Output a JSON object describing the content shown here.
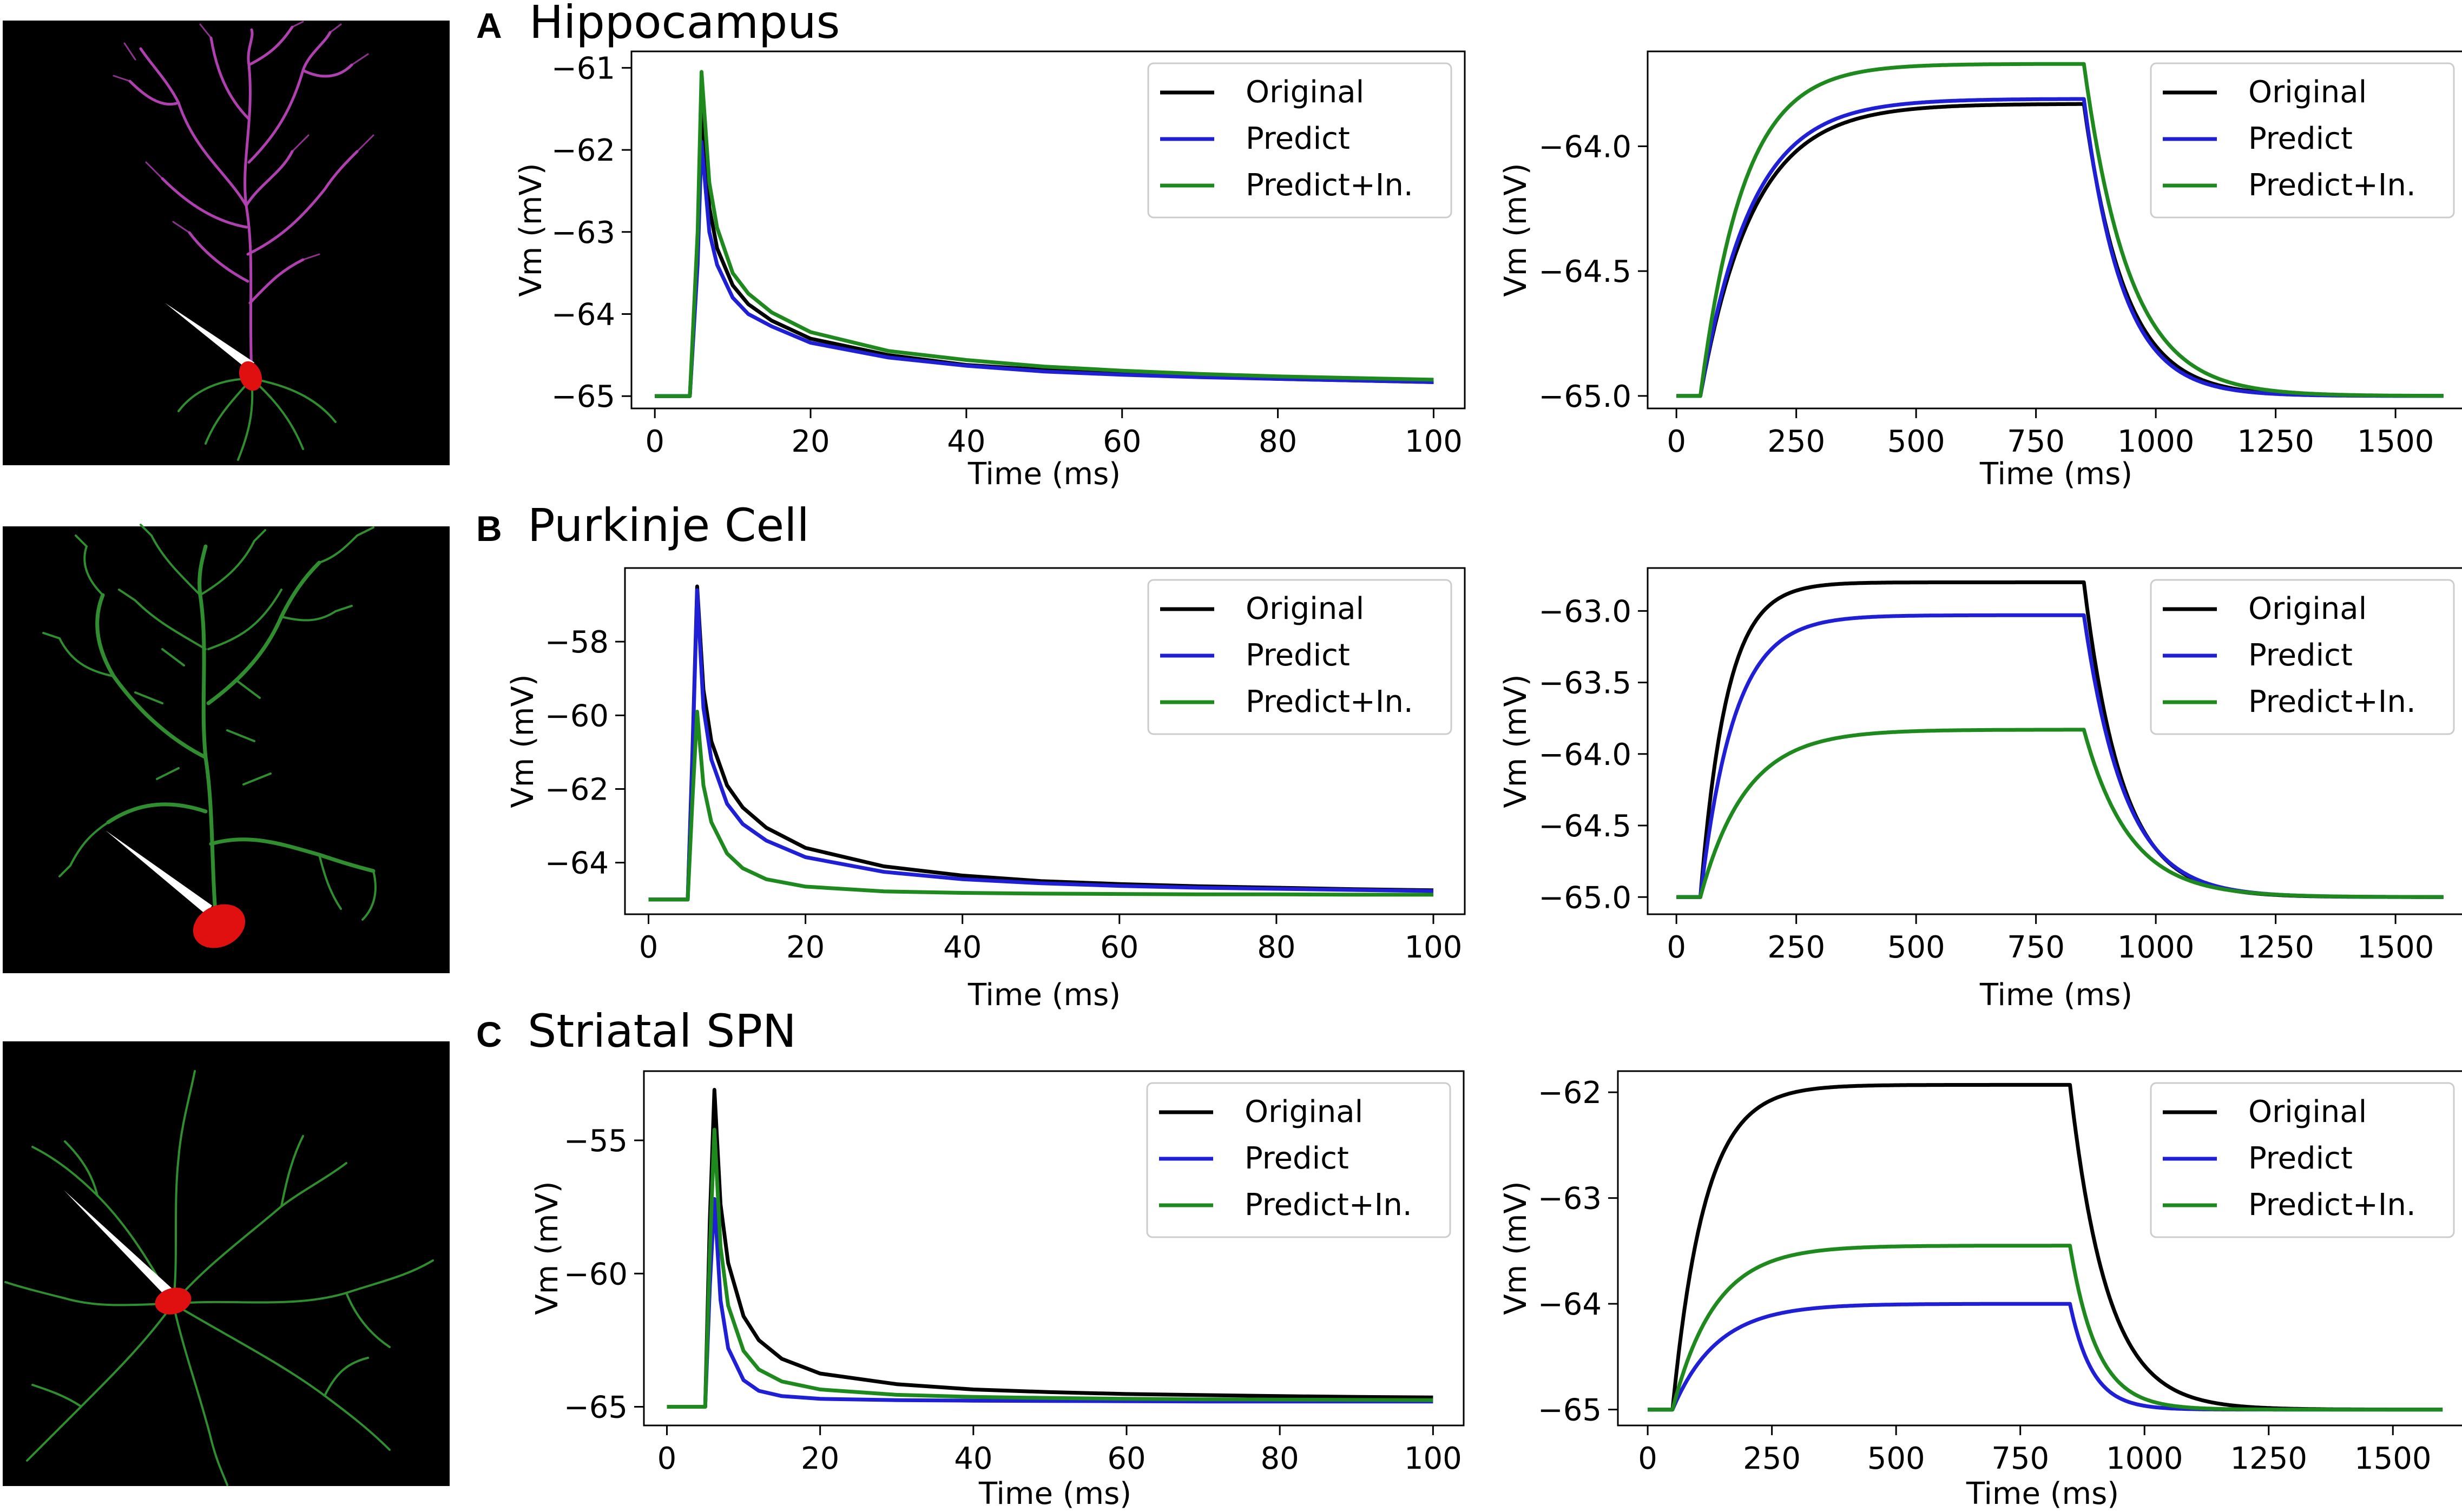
{
  "colors": {
    "original": "#000000",
    "predict": "#1f1fd6",
    "predict_in": "#1e8a1e",
    "neuron_hippo": "#b040b0",
    "neuron_green": "#2f8f2f",
    "soma": "#e01010"
  },
  "panels": [
    {
      "letter": "A",
      "title": "Hippocampus",
      "neuron_icon": "pyramidal-neuron-morphology"
    },
    {
      "letter": "B",
      "title": "Purkinje Cell",
      "neuron_icon": "purkinje-neuron-morphology"
    },
    {
      "letter": "C",
      "title": "Striatal SPN",
      "neuron_icon": "spn-neuron-morphology"
    }
  ],
  "legend_labels": [
    "Original",
    "Predict",
    "Predict+In."
  ],
  "chart_data": [
    {
      "id": "A-short",
      "type": "line",
      "xlabel": "Time (ms)",
      "ylabel": "Vm (mV)",
      "xlim": [
        -3,
        104
      ],
      "ylim": [
        -65.15,
        -60.8
      ],
      "xticks": [
        0,
        20,
        40,
        60,
        80,
        100
      ],
      "yticks": [
        -61,
        -62,
        -63,
        -64,
        -65
      ],
      "ytick_labels": [
        "−61",
        "−62",
        "−63",
        "−64",
        "−65"
      ],
      "legend": "top-right",
      "series": [
        {
          "name": "Original",
          "x": [
            0,
            4.5,
            5.5,
            6,
            7,
            8,
            10,
            12,
            15,
            20,
            30,
            40,
            50,
            60,
            70,
            80,
            90,
            100
          ],
          "values": [
            -65,
            -65,
            -63.3,
            -61.5,
            -62.7,
            -63.2,
            -63.65,
            -63.88,
            -64.08,
            -64.3,
            -64.5,
            -64.62,
            -64.68,
            -64.73,
            -64.76,
            -64.79,
            -64.81,
            -64.83
          ]
        },
        {
          "name": "Predict",
          "x": [
            0,
            4.5,
            5.5,
            6,
            7,
            8,
            10,
            12,
            15,
            20,
            30,
            40,
            50,
            60,
            70,
            80,
            90,
            100
          ],
          "values": [
            -65,
            -65,
            -63.4,
            -61.9,
            -63.0,
            -63.4,
            -63.8,
            -64.0,
            -64.15,
            -64.35,
            -64.53,
            -64.63,
            -64.7,
            -64.74,
            -64.77,
            -64.79,
            -64.81,
            -64.83
          ]
        },
        {
          "name": "Predict+In.",
          "x": [
            0,
            4.5,
            5.5,
            6,
            7,
            8,
            10,
            12,
            15,
            20,
            30,
            40,
            50,
            60,
            70,
            80,
            90,
            100
          ],
          "values": [
            -65,
            -65,
            -63.0,
            -61.05,
            -62.4,
            -62.95,
            -63.5,
            -63.75,
            -63.98,
            -64.22,
            -64.45,
            -64.56,
            -64.64,
            -64.69,
            -64.73,
            -64.76,
            -64.78,
            -64.8
          ]
        }
      ]
    },
    {
      "id": "A-long",
      "type": "line",
      "xlabel": "Time (ms)",
      "ylabel": "Vm (mV)",
      "xlim": [
        -60,
        1650
      ],
      "ylim": [
        -65.05,
        -63.62
      ],
      "xticks": [
        0,
        250,
        500,
        750,
        1000,
        1250,
        1500
      ],
      "yticks": [
        -64.0,
        -64.5,
        -65.0
      ],
      "ytick_labels": [
        "−64.0",
        "−64.5",
        "−65.0"
      ],
      "legend": "top-right",
      "series": [
        {
          "name": "Original",
          "step_on": 50,
          "step_off": 850,
          "end": 1600,
          "rest": -65.0,
          "plateau": -63.83,
          "tau_rise": 110,
          "tau_fall": 85
        },
        {
          "name": "Predict",
          "step_on": 50,
          "step_off": 850,
          "end": 1600,
          "rest": -65.0,
          "plateau": -63.81,
          "tau_rise": 105,
          "tau_fall": 80
        },
        {
          "name": "Predict+In.",
          "step_on": 50,
          "step_off": 850,
          "end": 1600,
          "rest": -65.0,
          "plateau": -63.67,
          "tau_rise": 90,
          "tau_fall": 95
        }
      ]
    },
    {
      "id": "B-short",
      "type": "line",
      "xlabel": "Time (ms)",
      "ylabel": "Vm (mV)",
      "xlim": [
        -3,
        104
      ],
      "ylim": [
        -65.4,
        -56.0
      ],
      "xticks": [
        0,
        20,
        40,
        60,
        80,
        100
      ],
      "yticks": [
        -58,
        -60,
        -62,
        -64
      ],
      "ytick_labels": [
        "−58",
        "−60",
        "−62",
        "−64"
      ],
      "legend": "top-right",
      "series": [
        {
          "name": "Original",
          "x": [
            0,
            5,
            5.6,
            6.2,
            7,
            8,
            10,
            12,
            15,
            20,
            30,
            40,
            50,
            60,
            70,
            80,
            90,
            100
          ],
          "values": [
            -65,
            -65,
            -61,
            -56.5,
            -59.3,
            -60.7,
            -61.9,
            -62.5,
            -63.05,
            -63.6,
            -64.1,
            -64.35,
            -64.5,
            -64.58,
            -64.64,
            -64.68,
            -64.72,
            -64.75
          ]
        },
        {
          "name": "Predict",
          "x": [
            0,
            5,
            5.6,
            6.2,
            7,
            8,
            10,
            12,
            15,
            20,
            30,
            40,
            50,
            60,
            70,
            80,
            90,
            100
          ],
          "values": [
            -65,
            -65,
            -61.2,
            -56.6,
            -59.8,
            -61.2,
            -62.4,
            -62.95,
            -63.4,
            -63.85,
            -64.25,
            -64.45,
            -64.56,
            -64.63,
            -64.68,
            -64.71,
            -64.74,
            -64.77
          ]
        },
        {
          "name": "Predict+In.",
          "x": [
            0,
            5,
            5.6,
            6.2,
            7,
            8,
            10,
            12,
            15,
            20,
            30,
            40,
            50,
            60,
            70,
            80,
            90,
            100
          ],
          "values": [
            -65,
            -65,
            -62.3,
            -59.9,
            -61.9,
            -62.9,
            -63.75,
            -64.15,
            -64.45,
            -64.65,
            -64.78,
            -64.82,
            -64.84,
            -64.85,
            -64.86,
            -64.86,
            -64.87,
            -64.87
          ]
        }
      ]
    },
    {
      "id": "B-long",
      "type": "line",
      "xlabel": "Time (ms)",
      "ylabel": "Vm (mV)",
      "xlim": [
        -60,
        1650
      ],
      "ylim": [
        -65.12,
        -62.7
      ],
      "xticks": [
        0,
        250,
        500,
        750,
        1000,
        1250,
        1500
      ],
      "yticks": [
        -63.0,
        -63.5,
        -64.0,
        -64.5,
        -65.0
      ],
      "ytick_labels": [
        "−63.0",
        "−63.5",
        "−64.0",
        "−64.5",
        "−65.0"
      ],
      "legend": "top-right",
      "series": [
        {
          "name": "Original",
          "step_on": 50,
          "step_off": 850,
          "end": 1600,
          "rest": -65.0,
          "plateau": -62.8,
          "tau_rise": 55,
          "tau_fall": 80
        },
        {
          "name": "Predict",
          "step_on": 50,
          "step_off": 850,
          "end": 1600,
          "rest": -65.0,
          "plateau": -63.03,
          "tau_rise": 70,
          "tau_fall": 85
        },
        {
          "name": "Predict+In.",
          "step_on": 50,
          "step_off": 850,
          "end": 1600,
          "rest": -65.0,
          "plateau": -63.83,
          "tau_rise": 95,
          "tau_fall": 95
        }
      ]
    },
    {
      "id": "C-short",
      "type": "line",
      "xlabel": "Time (ms)",
      "ylabel": "Vm (mV)",
      "xlim": [
        -3,
        104
      ],
      "ylim": [
        -65.7,
        -52.4
      ],
      "xticks": [
        0,
        20,
        40,
        60,
        80,
        100
      ],
      "yticks": [
        -55,
        -60,
        -65
      ],
      "ytick_labels": [
        "−55",
        "−60",
        "−65"
      ],
      "legend": "top-right",
      "series": [
        {
          "name": "Original",
          "x": [
            0,
            5,
            5.6,
            6.2,
            7,
            8,
            10,
            12,
            15,
            20,
            30,
            40,
            50,
            60,
            70,
            80,
            90,
            100
          ],
          "values": [
            -65,
            -65,
            -58,
            -53.1,
            -57.4,
            -59.6,
            -61.6,
            -62.5,
            -63.2,
            -63.75,
            -64.15,
            -64.35,
            -64.45,
            -64.52,
            -64.56,
            -64.6,
            -64.63,
            -64.65
          ]
        },
        {
          "name": "Predict",
          "x": [
            0,
            5,
            5.6,
            6.2,
            7,
            8,
            10,
            12,
            15,
            20,
            30,
            40,
            50,
            60,
            70,
            80,
            90,
            100
          ],
          "values": [
            -65,
            -65,
            -60.5,
            -57.2,
            -61.0,
            -62.8,
            -64.0,
            -64.4,
            -64.6,
            -64.7,
            -64.75,
            -64.77,
            -64.78,
            -64.79,
            -64.8,
            -64.8,
            -64.8,
            -64.8
          ]
        },
        {
          "name": "Predict+In.",
          "x": [
            0,
            5,
            5.6,
            6.2,
            7,
            8,
            10,
            12,
            15,
            20,
            30,
            40,
            50,
            60,
            70,
            80,
            90,
            100
          ],
          "values": [
            -65,
            -65,
            -59.2,
            -54.6,
            -59.0,
            -61.2,
            -62.9,
            -63.6,
            -64.05,
            -64.35,
            -64.55,
            -64.63,
            -64.67,
            -64.7,
            -64.72,
            -64.73,
            -64.74,
            -64.75
          ]
        }
      ]
    },
    {
      "id": "C-long",
      "type": "line",
      "xlabel": "Time (ms)",
      "ylabel": "Vm (mV)",
      "xlim": [
        -60,
        1650
      ],
      "ylim": [
        -65.15,
        -61.8
      ],
      "xticks": [
        0,
        250,
        500,
        750,
        1000,
        1250,
        1500
      ],
      "yticks": [
        -62,
        -63,
        -64,
        -65
      ],
      "ytick_labels": [
        "−62",
        "−63",
        "−64",
        "−65"
      ],
      "legend": "top-right",
      "series": [
        {
          "name": "Original",
          "step_on": 50,
          "step_off": 850,
          "end": 1600,
          "rest": -65.0,
          "plateau": -61.93,
          "tau_rise": 65,
          "tau_fall": 75
        },
        {
          "name": "Predict",
          "step_on": 50,
          "step_off": 850,
          "end": 1600,
          "rest": -65.0,
          "plateau": -64.0,
          "tau_rise": 90,
          "tau_fall": 45
        },
        {
          "name": "Predict+In.",
          "step_on": 50,
          "step_off": 850,
          "end": 1600,
          "rest": -65.0,
          "plateau": -63.45,
          "tau_rise": 85,
          "tau_fall": 55
        }
      ]
    }
  ]
}
